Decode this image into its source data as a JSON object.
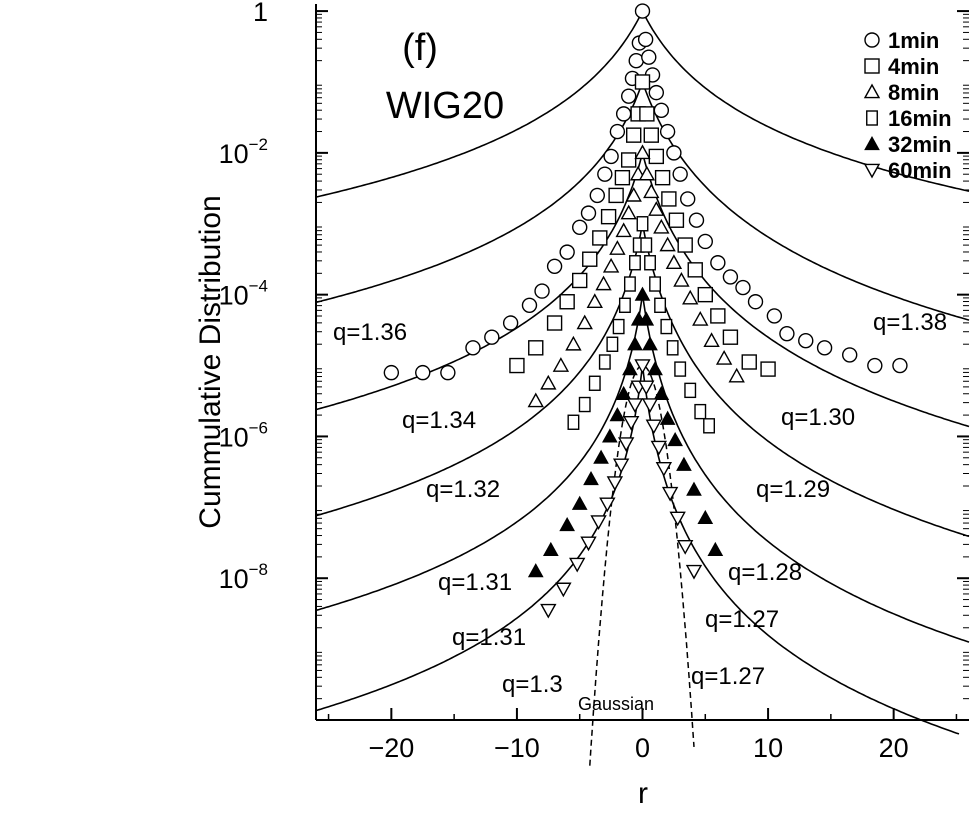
{
  "chart_data": {
    "type": "scatter",
    "panel_label": "(f)",
    "title": "WIG20",
    "xlabel": "r",
    "ylabel": "Cummulative Distribution",
    "xlim": [
      -26,
      26
    ],
    "ylim_log10": [
      -10,
      0.1
    ],
    "y_scale": "log",
    "x_ticks": [
      {
        "value": -20,
        "label": "−20"
      },
      {
        "value": -10,
        "label": "−10"
      },
      {
        "value": 0,
        "label": "0"
      },
      {
        "value": 10,
        "label": "10"
      },
      {
        "value": 20,
        "label": "20"
      }
    ],
    "y_ticks": [
      {
        "log": 0,
        "base": "1",
        "exp": ""
      },
      {
        "log": -2,
        "base": "10",
        "exp": "−2"
      },
      {
        "log": -4,
        "base": "10",
        "exp": "−4"
      },
      {
        "log": -6,
        "base": "10",
        "exp": "−6"
      },
      {
        "log": -8,
        "base": "10",
        "exp": "−8"
      }
    ],
    "legend_position": "top-right",
    "series": [
      {
        "name": "1min",
        "marker": "circle",
        "offset_log10": 0,
        "x": [
          -20,
          -17.5,
          -15.5,
          -13.5,
          -12,
          -10.5,
          -9,
          -8,
          -7,
          -6,
          -5,
          -4.3,
          -3.6,
          -3,
          -2.5,
          -2,
          -1.5,
          -1.1,
          -0.8,
          -0.5,
          -0.25,
          0,
          0.25,
          0.5,
          0.8,
          1.1,
          1.5,
          2,
          2.5,
          3,
          3.6,
          4.3,
          5,
          6,
          7,
          8,
          9,
          10.5,
          11.5,
          13,
          14.5,
          16.5,
          18.5,
          20.5
        ],
        "y_log10": [
          -5.1,
          -5.1,
          -5.1,
          -4.75,
          -4.6,
          -4.4,
          -4.15,
          -3.95,
          -3.6,
          -3.4,
          -3.05,
          -2.85,
          -2.6,
          -2.3,
          -2.05,
          -1.7,
          -1.45,
          -1.2,
          -0.95,
          -0.7,
          -0.45,
          0,
          -0.4,
          -0.65,
          -0.9,
          -1.15,
          -1.4,
          -1.7,
          -2.0,
          -2.3,
          -2.65,
          -2.95,
          -3.25,
          -3.55,
          -3.75,
          -3.9,
          -4.1,
          -4.3,
          -4.55,
          -4.65,
          -4.75,
          -4.85,
          -5.0,
          -5.0
        ]
      },
      {
        "name": "4min",
        "marker": "square",
        "offset_log10": -1,
        "x": [
          -10,
          -8.5,
          -7,
          -6,
          -5,
          -4.2,
          -3.4,
          -2.7,
          -2.1,
          -1.6,
          -1.1,
          -0.7,
          -0.35,
          0,
          0.35,
          0.7,
          1.1,
          1.6,
          2.1,
          2.7,
          3.4,
          4.2,
          5,
          6,
          7,
          8.5,
          10
        ],
        "y_log10": [
          -4.0,
          -3.75,
          -3.4,
          -3.1,
          -2.8,
          -2.5,
          -2.2,
          -1.9,
          -1.6,
          -1.35,
          -1.1,
          -0.75,
          -0.45,
          0,
          -0.45,
          -0.75,
          -1.05,
          -1.35,
          -1.65,
          -1.95,
          -2.3,
          -2.65,
          -3.0,
          -3.3,
          -3.6,
          -3.95,
          -4.05
        ]
      },
      {
        "name": "8min",
        "marker": "triangle-up",
        "offset_log10": -2,
        "x": [
          -8.5,
          -7.5,
          -6.5,
          -5.5,
          -4.6,
          -3.8,
          -3.1,
          -2.5,
          -2.0,
          -1.5,
          -1.1,
          -0.7,
          -0.35,
          0,
          0.35,
          0.7,
          1.1,
          1.5,
          2.0,
          2.5,
          3.1,
          3.8,
          4.6,
          5.5,
          6.5,
          7.5
        ],
        "y_log10": [
          -3.5,
          -3.25,
          -3.0,
          -2.7,
          -2.4,
          -2.1,
          -1.85,
          -1.6,
          -1.35,
          -1.1,
          -0.85,
          -0.6,
          -0.3,
          0,
          -0.3,
          -0.55,
          -0.8,
          -1.05,
          -1.3,
          -1.55,
          -1.8,
          -2.05,
          -2.35,
          -2.65,
          -2.9,
          -3.15
        ]
      },
      {
        "name": "16min",
        "marker": "square-tall",
        "offset_log10": -3,
        "x": [
          -5.5,
          -4.6,
          -3.8,
          -3.0,
          -2.4,
          -1.9,
          -1.4,
          -1.0,
          -0.6,
          -0.3,
          0,
          0.3,
          0.6,
          1.0,
          1.4,
          1.9,
          2.4,
          3.0,
          3.8,
          4.6,
          5.3
        ],
        "y_log10": [
          -2.8,
          -2.55,
          -2.25,
          -1.95,
          -1.7,
          -1.45,
          -1.15,
          -0.85,
          -0.55,
          -0.3,
          0,
          -0.3,
          -0.55,
          -0.85,
          -1.15,
          -1.45,
          -1.75,
          -2.05,
          -2.35,
          -2.65,
          -2.85
        ]
      },
      {
        "name": "32min",
        "marker": "triangle-filled",
        "offset_log10": -4,
        "x": [
          -8.5,
          -7.3,
          -6.0,
          -5.0,
          -4.1,
          -3.3,
          -2.6,
          -2.0,
          -1.5,
          -1.0,
          -0.6,
          -0.3,
          0,
          0.3,
          0.6,
          1.0,
          1.5,
          2.0,
          2.6,
          3.3,
          4.1,
          5.0,
          5.8
        ],
        "y_log10": [
          -3.9,
          -3.6,
          -3.25,
          -2.95,
          -2.6,
          -2.3,
          -2.0,
          -1.7,
          -1.4,
          -1.05,
          -0.7,
          -0.35,
          0,
          -0.35,
          -0.7,
          -1.05,
          -1.4,
          -1.75,
          -2.05,
          -2.4,
          -2.75,
          -3.15,
          -3.6
        ]
      },
      {
        "name": "60min",
        "marker": "triangle-down",
        "offset_log10": -5,
        "x": [
          -7.5,
          -6.3,
          -5.2,
          -4.3,
          -3.5,
          -2.8,
          -2.2,
          -1.7,
          -1.3,
          -0.9,
          -0.6,
          -0.3,
          0,
          0.3,
          0.6,
          0.9,
          1.3,
          1.7,
          2.2,
          2.8,
          3.4,
          4.1
        ],
        "y_log10": [
          -3.45,
          -3.15,
          -2.8,
          -2.5,
          -2.2,
          -1.95,
          -1.65,
          -1.4,
          -1.1,
          -0.8,
          -0.55,
          -0.3,
          0,
          -0.3,
          -0.55,
          -0.85,
          -1.15,
          -1.45,
          -1.8,
          -2.15,
          -2.55,
          -2.9
        ]
      }
    ],
    "fits": [
      {
        "side": "left",
        "q": 1.36,
        "label": "q=1.36",
        "offset_log10": 0
      },
      {
        "side": "right",
        "q": 1.38,
        "label": "q=1.38",
        "offset_log10": 0
      },
      {
        "side": "left",
        "q": 1.34,
        "label": "q=1.34",
        "offset_log10": -1
      },
      {
        "side": "right",
        "q": 1.3,
        "label": "q=1.30",
        "offset_log10": -1
      },
      {
        "side": "left",
        "q": 1.32,
        "label": "q=1.32",
        "offset_log10": -2
      },
      {
        "side": "right",
        "q": 1.29,
        "label": "q=1.29",
        "offset_log10": -2
      },
      {
        "side": "left",
        "q": 1.31,
        "label": "q=1.31",
        "offset_log10": -3
      },
      {
        "side": "right",
        "q": 1.28,
        "label": "q=1.28",
        "offset_log10": -3
      },
      {
        "side": "left",
        "q": 1.31,
        "label": "q=1.31",
        "offset_log10": -4
      },
      {
        "side": "right",
        "q": 1.27,
        "label": "q=1.27",
        "offset_log10": -4
      },
      {
        "side": "left",
        "q": 1.3,
        "label": "q=1.3",
        "offset_log10": -5
      },
      {
        "side": "right",
        "q": 1.27,
        "label": "q=1.27",
        "offset_log10": -5
      }
    ],
    "gaussian_label": "Gaussian",
    "grid": false
  }
}
